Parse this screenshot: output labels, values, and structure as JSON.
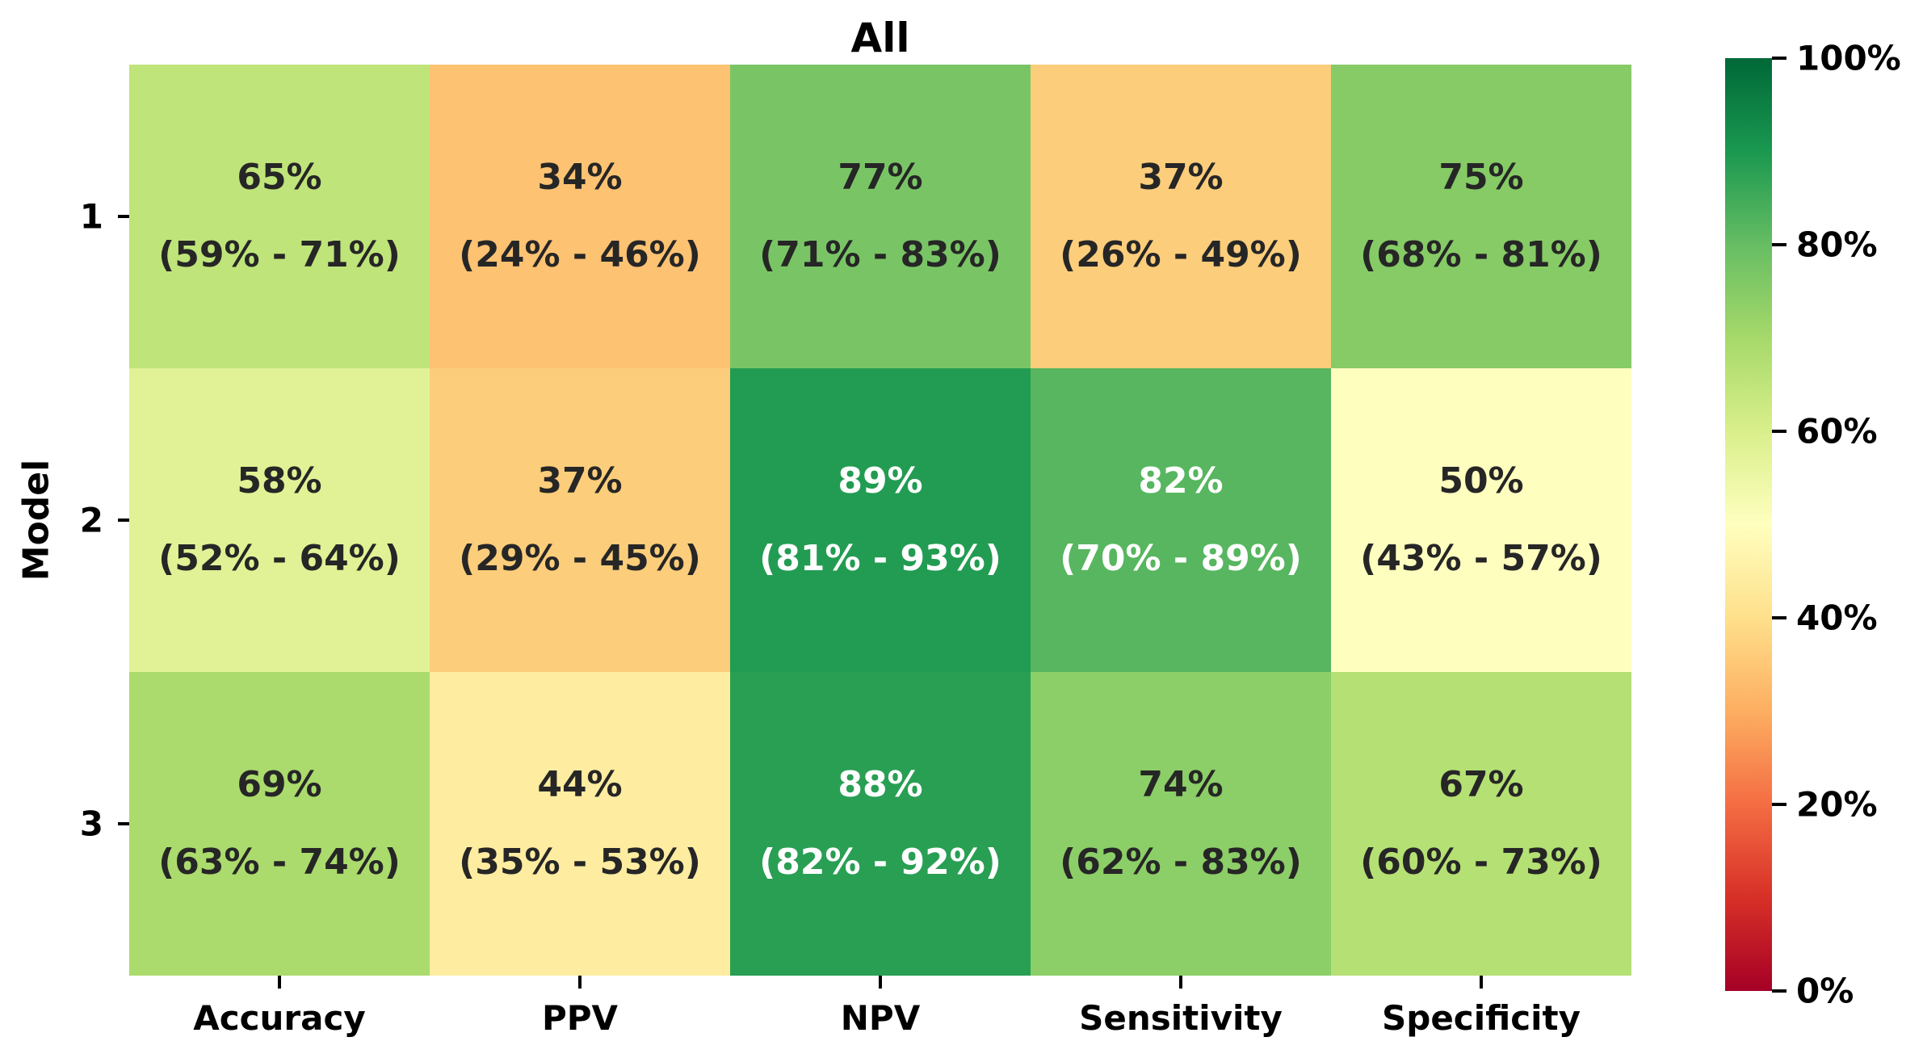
{
  "figure": {
    "title": "All",
    "background": "#ffffff"
  },
  "chart_data": {
    "type": "heatmap",
    "title": "All",
    "xlabel": "",
    "ylabel": "Model",
    "rows": [
      "1",
      "2",
      "3"
    ],
    "columns": [
      "Accuracy",
      "PPV",
      "NPV",
      "Sensitivity",
      "Specificity"
    ],
    "values_pct": [
      [
        65,
        34,
        77,
        37,
        75
      ],
      [
        58,
        37,
        89,
        82,
        50
      ],
      [
        69,
        44,
        88,
        74,
        67
      ]
    ],
    "cells": [
      [
        {
          "value": "65%",
          "ci": "(59% - 71%)",
          "color": "#bfe47a",
          "text_color": "#262626"
        },
        {
          "value": "34%",
          "ci": "(24% - 46%)",
          "color": "#fdc272",
          "text_color": "#262626"
        },
        {
          "value": "77%",
          "ci": "(71% - 83%)",
          "color": "#79c565",
          "text_color": "#262626"
        },
        {
          "value": "37%",
          "ci": "(26% - 49%)",
          "color": "#fccd7b",
          "text_color": "#262626"
        },
        {
          "value": "75%",
          "ci": "(68% - 81%)",
          "color": "#86cb66",
          "text_color": "#262626"
        }
      ],
      [
        {
          "value": "58%",
          "ci": "(52% - 64%)",
          "color": "#e0f295",
          "text_color": "#262626"
        },
        {
          "value": "37%",
          "ci": "(29% - 45%)",
          "color": "#fccd7b",
          "text_color": "#262626"
        },
        {
          "value": "89%",
          "ci": "(81% - 93%)",
          "color": "#229c52",
          "text_color": "#ffffff"
        },
        {
          "value": "82%",
          "ci": "(70% - 89%)",
          "color": "#57b65f",
          "text_color": "#ffffff"
        },
        {
          "value": "50%",
          "ci": "(43% - 57%)",
          "color": "#feffbf",
          "text_color": "#262626"
        }
      ],
      [
        {
          "value": "69%",
          "ci": "(63% - 74%)",
          "color": "#abdb6d",
          "text_color": "#262626"
        },
        {
          "value": "44%",
          "ci": "(35% - 53%)",
          "color": "#feeca0",
          "text_color": "#262626"
        },
        {
          "value": "88%",
          "ci": "(82% - 92%)",
          "color": "#299f54",
          "text_color": "#ffffff"
        },
        {
          "value": "74%",
          "ci": "(62% - 83%)",
          "color": "#8cce67",
          "text_color": "#262626"
        },
        {
          "value": "67%",
          "ci": "(60% - 73%)",
          "color": "#b5e074",
          "text_color": "#262626"
        }
      ]
    ],
    "colorbar": {
      "range_min": "0%",
      "range_max": "100%",
      "tick_labels": [
        "100%",
        "80%",
        "60%",
        "40%",
        "20%",
        "0%"
      ],
      "tick_values": [
        100,
        80,
        60,
        40,
        20,
        0
      ],
      "gradient_bottom_to_top": [
        "#a50026",
        "#d73027",
        "#f46d43",
        "#fdae61",
        "#fee08b",
        "#ffffbf",
        "#d9ef8b",
        "#a6d96a",
        "#66bd63",
        "#1a9850",
        "#006837"
      ]
    }
  }
}
